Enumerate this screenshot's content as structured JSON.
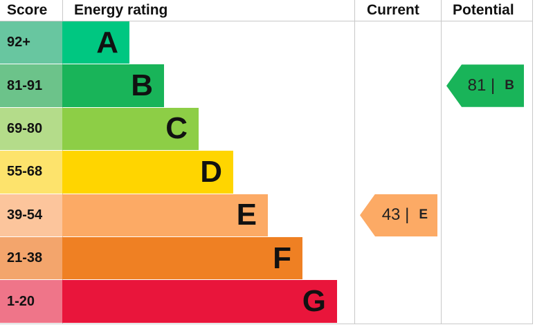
{
  "headers": {
    "score": "Score",
    "rating": "Energy rating",
    "current": "Current",
    "potential": "Potential"
  },
  "chart_data": {
    "type": "table",
    "bands": [
      {
        "letter": "A",
        "range": "92+",
        "color": "#00c781",
        "score_color": "#68c6a0"
      },
      {
        "letter": "B",
        "range": "81-91",
        "color": "#19b459",
        "score_color": "#6cc38a"
      },
      {
        "letter": "C",
        "range": "69-80",
        "color": "#8dce46",
        "score_color": "#b4dc8a"
      },
      {
        "letter": "D",
        "range": "55-68",
        "color": "#ffd500",
        "score_color": "#fde36c"
      },
      {
        "letter": "E",
        "range": "39-54",
        "color": "#fcaa65",
        "score_color": "#fcc59c"
      },
      {
        "letter": "F",
        "range": "21-38",
        "color": "#ef8023",
        "score_color": "#f3a56c"
      },
      {
        "letter": "G",
        "range": "1-20",
        "color": "#e9153b",
        "score_color": "#ef7589"
      }
    ],
    "current": {
      "value": "43",
      "separator": "|",
      "letter": "E",
      "color": "#fcaa65"
    },
    "potential": {
      "value": "81",
      "separator": "|",
      "letter": "B",
      "color": "#19b459"
    }
  }
}
